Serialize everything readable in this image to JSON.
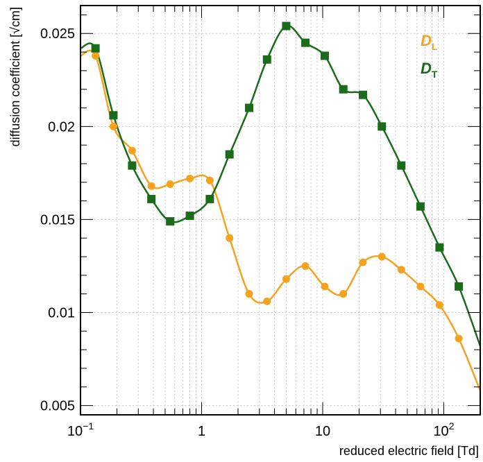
{
  "chart_data": {
    "type": "scatter",
    "x_scale": "log",
    "xlim": [
      0.1,
      200
    ],
    "ylim": [
      0.0045,
      0.0265
    ],
    "grid": true,
    "xlabel": "reduced electric field [Td]",
    "ylabel": "diffusion coefficient [√cm]",
    "x_ticks": [
      {
        "value": 0.1,
        "label": "10",
        "sup": "−1"
      },
      {
        "value": 1,
        "label": "1",
        "sup": ""
      },
      {
        "value": 10,
        "label": "10",
        "sup": ""
      },
      {
        "value": 100,
        "label": "10",
        "sup": "2"
      }
    ],
    "y_ticks": [
      {
        "value": 0.005,
        "label": "0.005"
      },
      {
        "value": 0.01,
        "label": "0.01"
      },
      {
        "value": 0.015,
        "label": "0.015"
      },
      {
        "value": 0.02,
        "label": "0.02"
      },
      {
        "value": 0.025,
        "label": "0.025"
      }
    ],
    "legend_position": "top-right",
    "series": [
      {
        "name": "D",
        "subscript": "L",
        "color": "#f5a21f",
        "marker": "circle",
        "x": [
          0.133,
          0.187,
          0.267,
          0.385,
          0.55,
          0.8,
          1.17,
          1.7,
          2.47,
          3.47,
          5.0,
          7.2,
          10.4,
          14.8,
          21.5,
          30.8,
          44.6,
          64.2,
          92.3,
          133
        ],
        "y": [
          0.0238,
          0.02,
          0.0187,
          0.0168,
          0.0169,
          0.0172,
          0.0171,
          0.014,
          0.011,
          0.0106,
          0.0118,
          0.0125,
          0.0114,
          0.011,
          0.0127,
          0.013,
          0.0123,
          0.0114,
          0.0104,
          0.0086
        ],
        "curve_extra": {
          "x0": 0.1,
          "y0": 0.0238,
          "x1": 200,
          "y1": 0.0058
        }
      },
      {
        "name": "D",
        "subscript": "T",
        "color": "#1a6b1a",
        "marker": "square",
        "x": [
          0.133,
          0.187,
          0.267,
          0.385,
          0.55,
          0.8,
          1.17,
          1.7,
          2.47,
          3.47,
          5.0,
          7.2,
          10.4,
          14.8,
          21.5,
          30.8,
          44.6,
          64.2,
          92.3,
          133
        ],
        "y": [
          0.0242,
          0.0206,
          0.0179,
          0.0161,
          0.0149,
          0.0152,
          0.0161,
          0.0185,
          0.021,
          0.0236,
          0.0254,
          0.0245,
          0.0238,
          0.022,
          0.0217,
          0.02,
          0.0179,
          0.0157,
          0.0135,
          0.0114
        ],
        "curve_extra": {
          "x0": 0.1,
          "y0": 0.0242,
          "x1": 200,
          "y1": 0.0082
        }
      }
    ]
  }
}
